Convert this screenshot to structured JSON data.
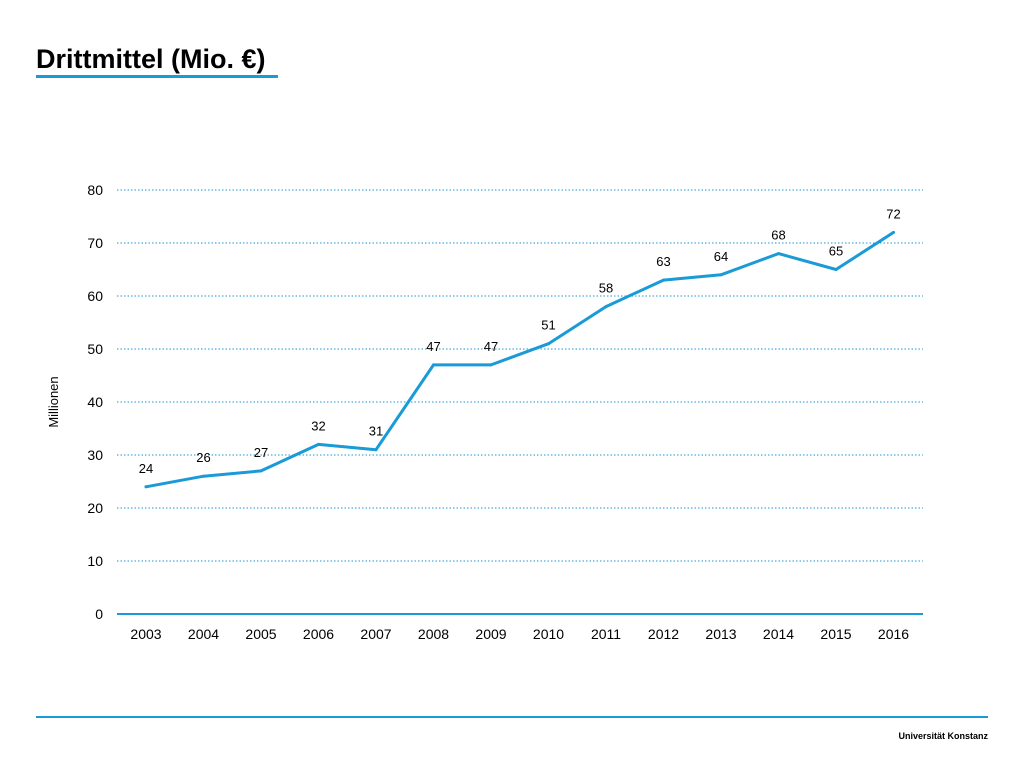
{
  "header": {
    "title": "Drittmittel (Mio. €)"
  },
  "footer": {
    "institution": "Universität Konstanz"
  },
  "colors": {
    "accent": "#1a9ad6",
    "gridline": "#1a9ad6",
    "text": "#000000"
  },
  "chart_data": {
    "type": "line",
    "title": "Drittmittel (Mio. €)",
    "xlabel": "",
    "ylabel": "Millionen",
    "categories": [
      "2003",
      "2004",
      "2005",
      "2006",
      "2007",
      "2008",
      "2009",
      "2010",
      "2011",
      "2012",
      "2013",
      "2014",
      "2015",
      "2016"
    ],
    "series": [
      {
        "values": [
          24,
          26,
          27,
          32,
          31,
          47,
          47,
          51,
          58,
          63,
          64,
          68,
          65,
          72
        ]
      }
    ],
    "ylim": [
      0,
      80
    ],
    "yticks": [
      0,
      10,
      20,
      30,
      40,
      50,
      60,
      70,
      80
    ],
    "grid": "horizontal dotted",
    "data_labels": true,
    "legend": "none"
  }
}
